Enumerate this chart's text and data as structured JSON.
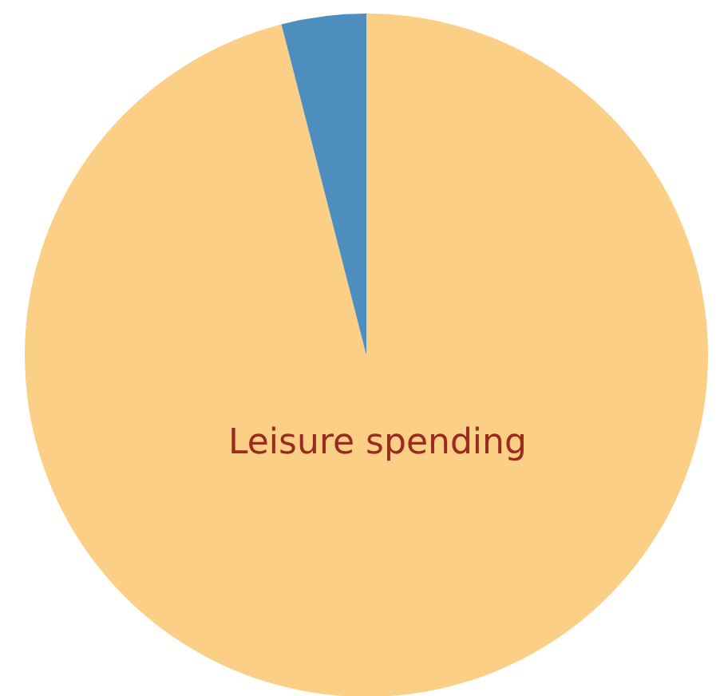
{
  "chart_data": {
    "type": "pie",
    "categories": [
      "Leisure spending",
      null
    ],
    "values": [
      96,
      4
    ],
    "colors": [
      "#fccf86",
      "#4e8ebf"
    ]
  }
}
